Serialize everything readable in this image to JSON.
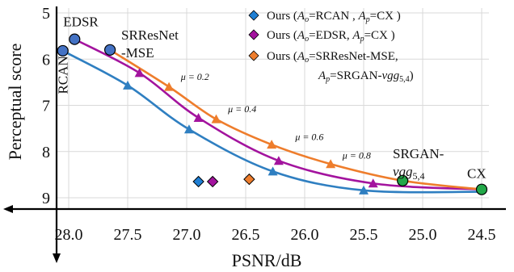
{
  "chart_data": {
    "type": "line",
    "xlabel": "PSNR/dB",
    "ylabel": "Perceptual score",
    "xlim": [
      28.2,
      24.5
    ],
    "ylim": [
      5,
      9.2
    ],
    "x_inverted": true,
    "y_inverted": true,
    "x_ticks": [
      28.0,
      27.5,
      27.0,
      26.5,
      26.0,
      25.5,
      25.0,
      24.5
    ],
    "x_tick_labels": [
      "28.0",
      "27.5",
      "27.0",
      "26.5",
      "26.0",
      "25.5",
      "25.0",
      "24.5"
    ],
    "y_ticks": [
      5,
      6,
      7,
      8,
      9
    ],
    "y_tick_labels": [
      "5",
      "6",
      "7",
      "8",
      "9"
    ],
    "grid": true,
    "legend_position": "top-right",
    "series": [
      {
        "name": "Ours (A_o=RCAN , A_p=CX )",
        "color": "#2f7fc1",
        "marker": "triangle",
        "points": [
          {
            "x": 28.05,
            "y": 5.82
          },
          {
            "x": 27.5,
            "y": 6.57
          },
          {
            "x": 26.98,
            "y": 7.52
          },
          {
            "x": 26.27,
            "y": 8.43
          },
          {
            "x": 25.5,
            "y": 8.84
          },
          {
            "x": 24.5,
            "y": 8.87
          }
        ]
      },
      {
        "name": "Ours (A_o=EDSR, A_p=CX )",
        "color": "#a3139e",
        "marker": "triangle",
        "points": [
          {
            "x": 27.95,
            "y": 5.57
          },
          {
            "x": 27.4,
            "y": 6.3
          },
          {
            "x": 26.9,
            "y": 7.27
          },
          {
            "x": 26.22,
            "y": 8.2
          },
          {
            "x": 25.42,
            "y": 8.69
          },
          {
            "x": 24.5,
            "y": 8.82
          }
        ]
      },
      {
        "name": "Ours (A_o=SRResNet-MSE, A_p=SRGAN-vgg_5,4)",
        "color": "#ee7d2c",
        "marker": "triangle",
        "points": [
          {
            "x": 27.65,
            "y": 5.8
          },
          {
            "x": 27.15,
            "y": 6.6
          },
          {
            "x": 26.75,
            "y": 7.3
          },
          {
            "x": 26.28,
            "y": 7.85
          },
          {
            "x": 25.78,
            "y": 8.27
          },
          {
            "x": 25.17,
            "y": 8.63
          },
          {
            "x": 24.5,
            "y": 8.82
          }
        ]
      }
    ],
    "endpoints": [
      {
        "label": "RCAN",
        "x": 28.05,
        "y": 5.82,
        "color": "#4472c4"
      },
      {
        "label": "EDSR",
        "x": 27.95,
        "y": 5.57,
        "color": "#4472c4"
      },
      {
        "label": "SRResNet -MSE",
        "x": 27.65,
        "y": 5.8,
        "color": "#4472c4"
      },
      {
        "label": "SRGAN- vgg5,4",
        "x": 25.17,
        "y": 8.63,
        "color": "#22a848"
      },
      {
        "label": "CX",
        "x": 24.5,
        "y": 8.82,
        "color": "#22a848"
      }
    ],
    "diamonds": [
      {
        "series": "Ours (A_o=RCAN , A_p=CX )",
        "x": 26.9,
        "y": 8.65,
        "color": "#1f7fd4"
      },
      {
        "series": "Ours (A_o=EDSR, A_p=CX )",
        "x": 26.78,
        "y": 8.65,
        "color": "#a3139e"
      },
      {
        "series": "Ours (A_o=SRResNet-MSE, A_p=SRGAN-vgg_5,4)",
        "x": 26.47,
        "y": 8.6,
        "color": "#ee7d2c"
      }
    ],
    "mu_annotations": [
      {
        "text": "μ = 0.2",
        "x": 27.05,
        "y": 6.45
      },
      {
        "text": "μ = 0.4",
        "x": 26.65,
        "y": 7.15
      },
      {
        "text": "μ = 0.6",
        "x": 26.08,
        "y": 7.75
      },
      {
        "text": "μ = 0.8",
        "x": 25.68,
        "y": 8.15
      }
    ]
  },
  "legend": {
    "items": [
      {
        "marker_color": "#1f7fd4",
        "prefix": "Ours (",
        "ao_value": "RCAN , ",
        "ap_value": "CX )",
        "line2": ""
      },
      {
        "marker_color": "#a3139e",
        "prefix": "Ours (",
        "ao_value": "EDSR, ",
        "ap_value": "CX )",
        "line2": ""
      },
      {
        "marker_color": "#ee7d2c",
        "prefix": "Ours (",
        "ao_value": "SRResNet-MSE,",
        "ap_value": "SRGAN-",
        "ap_italic": "vgg",
        "ap_sub": "5,4",
        "ap_tail": ")"
      }
    ],
    "ao_symbol": "A",
    "ao_sub": "o",
    "ap_symbol": "A",
    "ap_sub": "p",
    "eq": "="
  }
}
